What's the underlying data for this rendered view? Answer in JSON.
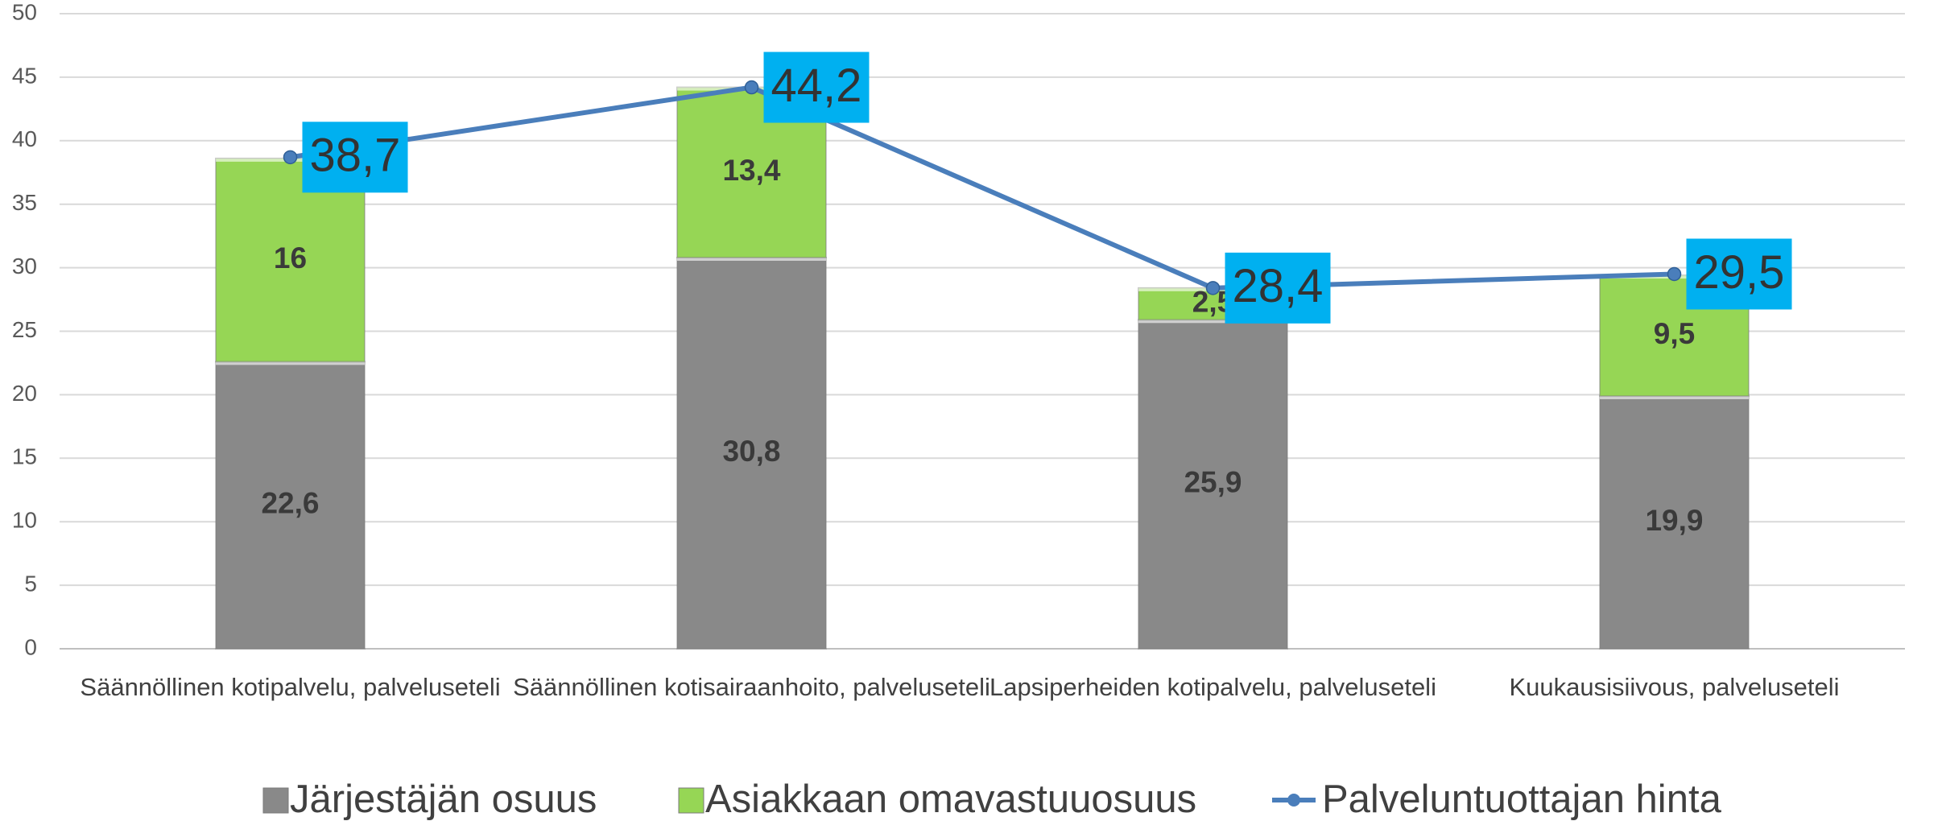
{
  "chart_data": {
    "type": "bar",
    "stacked": true,
    "categories": [
      "Säännöllinen kotipalvelu, palveluseteli",
      "Säännöllinen kotisairaanhoito, palveluseteli",
      "Lapsiperheiden kotipalvelu, palveluseteli",
      "Kuukausisiivous, palveluseteli"
    ],
    "series": [
      {
        "name": "Järjestäjän osuus",
        "type": "bar",
        "color": "#898989",
        "values": [
          22.6,
          30.8,
          25.9,
          19.9
        ],
        "value_labels": [
          "22,6",
          "30,8",
          "25,9",
          "19,9"
        ]
      },
      {
        "name": "Asiakkaan omavastuuosuus",
        "type": "bar",
        "color": "#96d655",
        "values": [
          16,
          13.4,
          2.5,
          9.5
        ],
        "value_labels": [
          "16",
          "13,4",
          "2,5",
          "9,5"
        ]
      },
      {
        "name": "Palveluntuottajan hinta",
        "type": "line",
        "color": "#4a7ebb",
        "values": [
          38.7,
          44.2,
          28.4,
          29.5
        ],
        "value_labels": [
          "38,7",
          "44,2",
          "28,4",
          "29,5"
        ],
        "label_box_color": "#00b0f0"
      }
    ],
    "ylim": [
      0,
      50
    ],
    "yticks": [
      0,
      5,
      10,
      15,
      20,
      25,
      30,
      35,
      40,
      45,
      50
    ],
    "grid": true,
    "legend": "bottom"
  }
}
